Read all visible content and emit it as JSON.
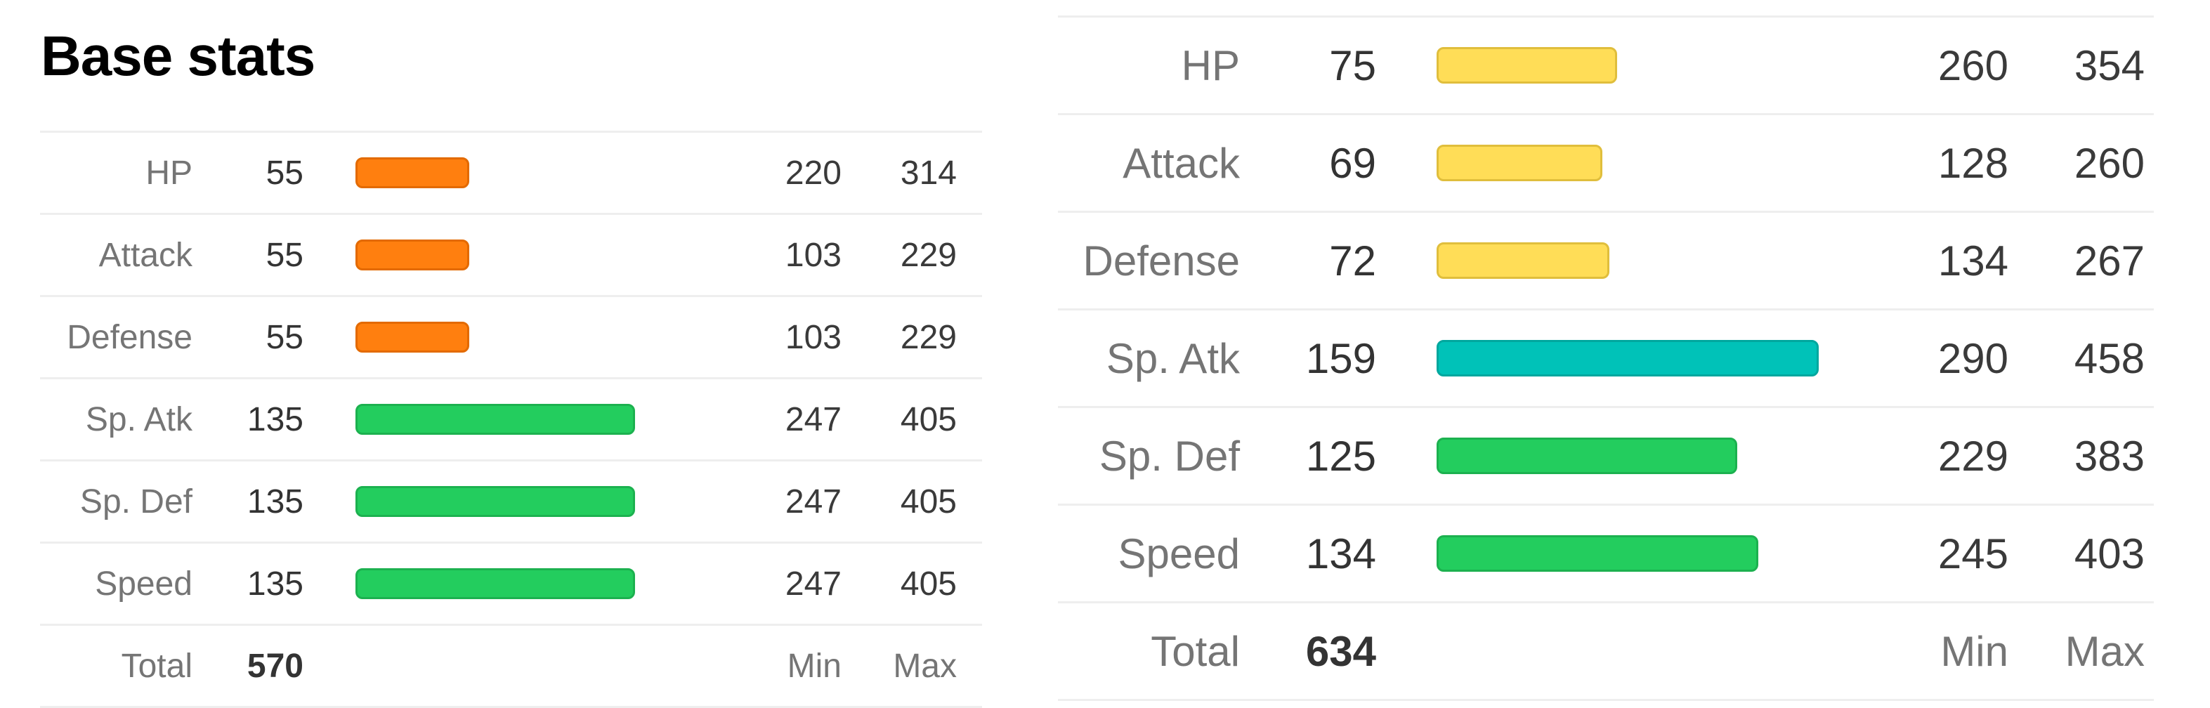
{
  "left": {
    "title": "Base stats",
    "stats": [
      {
        "label": "HP",
        "value": 55,
        "min": 220,
        "max": 314,
        "color": "#FF7F0F",
        "border": "#E36A00"
      },
      {
        "label": "Attack",
        "value": 55,
        "min": 103,
        "max": 229,
        "color": "#FF7F0F",
        "border": "#E36A00"
      },
      {
        "label": "Defense",
        "value": 55,
        "min": 103,
        "max": 229,
        "color": "#FF7F0F",
        "border": "#E36A00"
      },
      {
        "label": "Sp. Atk",
        "value": 135,
        "min": 247,
        "max": 405,
        "color": "#23CD5E",
        "border": "#1CB14F"
      },
      {
        "label": "Sp. Def",
        "value": 135,
        "min": 247,
        "max": 405,
        "color": "#23CD5E",
        "border": "#1CB14F"
      },
      {
        "label": "Speed",
        "value": 135,
        "min": 247,
        "max": 405,
        "color": "#23CD5E",
        "border": "#1CB14F"
      }
    ],
    "total_label": "Total",
    "total": "570",
    "min_label": "Min",
    "max_label": "Max"
  },
  "right": {
    "stats": [
      {
        "label": "HP",
        "value": 75,
        "min": 260,
        "max": 354,
        "color": "#FFDD57",
        "border": "#E0BE3C"
      },
      {
        "label": "Attack",
        "value": 69,
        "min": 128,
        "max": 260,
        "color": "#FFDD57",
        "border": "#E0BE3C"
      },
      {
        "label": "Defense",
        "value": 72,
        "min": 134,
        "max": 267,
        "color": "#FFDD57",
        "border": "#E0BE3C"
      },
      {
        "label": "Sp. Atk",
        "value": 159,
        "min": 290,
        "max": 458,
        "color": "#00C2B8",
        "border": "#00A79E"
      },
      {
        "label": "Sp. Def",
        "value": 125,
        "min": 229,
        "max": 383,
        "color": "#23CD5E",
        "border": "#1CB14F"
      },
      {
        "label": "Speed",
        "value": 134,
        "min": 245,
        "max": 403,
        "color": "#23CD5E",
        "border": "#1CB14F"
      }
    ],
    "total_label": "Total",
    "total": "634",
    "min_label": "Min",
    "max_label": "Max"
  }
}
